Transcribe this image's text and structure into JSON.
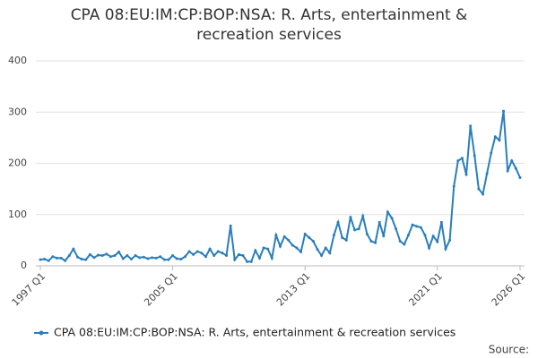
{
  "chart_data": {
    "type": "line",
    "title": "CPA 08:EU:IM:CP:BOP:NSA: R. Arts, entertainment & recreation services",
    "source": "Source:",
    "categories": [
      "1997 Q1",
      null,
      null,
      null,
      null,
      null,
      null,
      null,
      null,
      null,
      null,
      null,
      null,
      null,
      null,
      null,
      null,
      null,
      null,
      null,
      null,
      null,
      null,
      null,
      null,
      null,
      null,
      null,
      null,
      null,
      null,
      null,
      "2005 Q1",
      null,
      null,
      null,
      null,
      null,
      null,
      null,
      null,
      null,
      null,
      null,
      null,
      null,
      null,
      null,
      null,
      null,
      null,
      null,
      null,
      null,
      null,
      null,
      null,
      null,
      null,
      null,
      null,
      null,
      null,
      null,
      "2013 Q1",
      null,
      null,
      null,
      null,
      null,
      null,
      null,
      null,
      null,
      null,
      null,
      null,
      null,
      null,
      null,
      null,
      null,
      null,
      null,
      null,
      null,
      null,
      null,
      null,
      null,
      null,
      null,
      null,
      null,
      null,
      null,
      "2021 Q1",
      null,
      null,
      null,
      null,
      null,
      null,
      null,
      null,
      null,
      null,
      null,
      null,
      null,
      null,
      null,
      null,
      null,
      null,
      null,
      "2026 Q1"
    ],
    "series": [
      {
        "name": "CPA 08:EU:IM:CP:BOP:NSA: R. Arts, entertainment & recreation services",
        "color": "#2a7fba",
        "values": [
          12,
          13,
          10,
          18,
          15,
          15,
          10,
          20,
          33,
          17,
          13,
          12,
          22,
          16,
          21,
          20,
          23,
          18,
          20,
          27,
          14,
          20,
          13,
          20,
          16,
          17,
          14,
          16,
          15,
          18,
          12,
          12,
          20,
          14,
          13,
          18,
          28,
          22,
          28,
          25,
          18,
          33,
          20,
          28,
          25,
          20,
          78,
          12,
          22,
          20,
          8,
          8,
          30,
          15,
          35,
          33,
          15,
          60,
          38,
          57,
          50,
          40,
          35,
          27,
          62,
          55,
          48,
          32,
          20,
          35,
          25,
          60,
          85,
          55,
          50,
          95,
          70,
          72,
          97,
          62,
          48,
          45,
          85,
          58,
          105,
          93,
          72,
          48,
          42,
          60,
          80,
          77,
          75,
          60,
          35,
          58,
          47,
          85,
          33,
          50,
          155,
          205,
          210,
          178,
          273,
          215,
          150,
          140,
          180,
          220,
          252,
          245,
          302,
          185,
          205,
          190,
          172
        ]
      }
    ],
    "ylim": [
      0,
      400
    ],
    "yticks": [
      0,
      100,
      200,
      300,
      400
    ],
    "grid": true
  }
}
